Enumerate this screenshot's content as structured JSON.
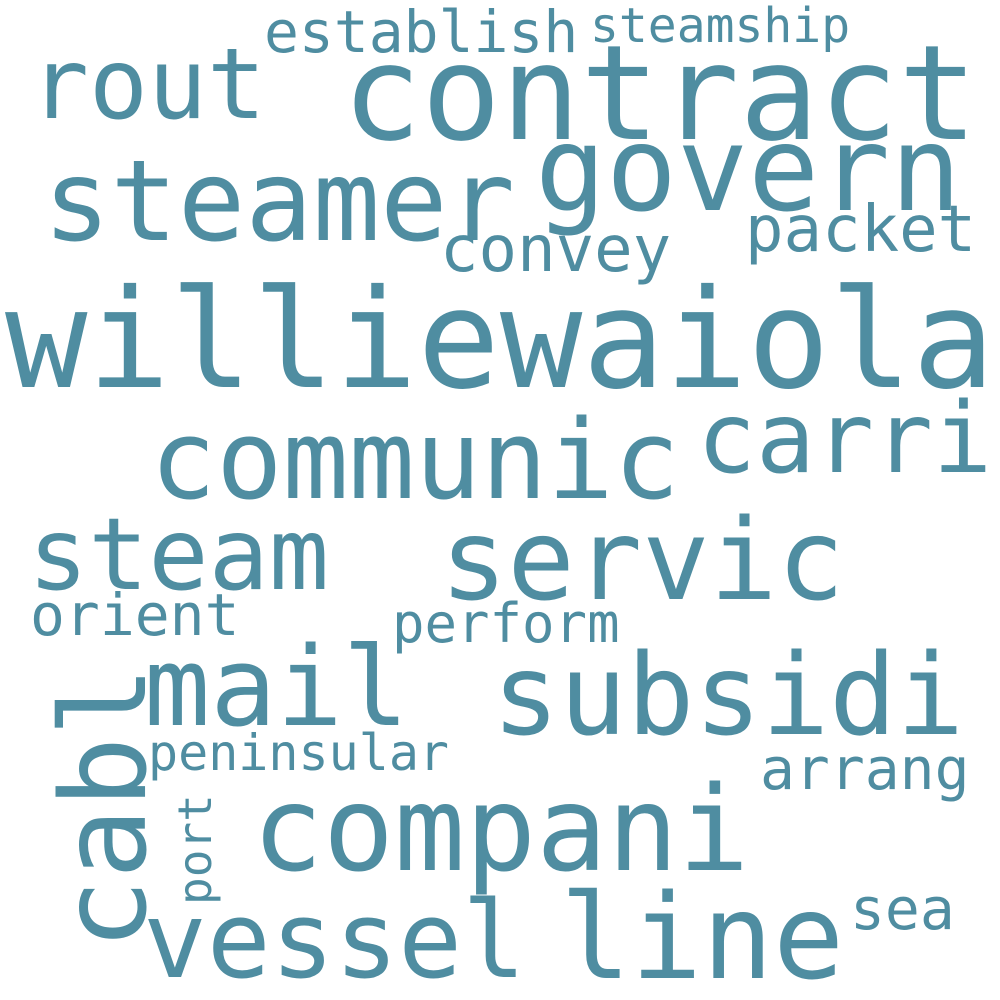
{
  "word_color": "#4f8da1",
  "background_color": "#ffffff",
  "words": {
    "williewaiola": "williewaiola",
    "communic": "communic",
    "servic": "servic",
    "steam": "steam",
    "subsidi": "subsidi",
    "compani": "compani",
    "contract": "contract",
    "steamer": "steamer",
    "govern": "govern",
    "mail": "mail",
    "vessel": "vessel",
    "line": "line",
    "cabl": "cabl",
    "carri": "carri",
    "rout": "rout",
    "packet": "packet",
    "convey": "convey",
    "establish": "establish",
    "steamship": "steamship",
    "orient": "orient",
    "perform": "perform",
    "peninsular": "peninsular",
    "arrang": "arrang",
    "port": "port",
    "sea": "sea"
  }
}
